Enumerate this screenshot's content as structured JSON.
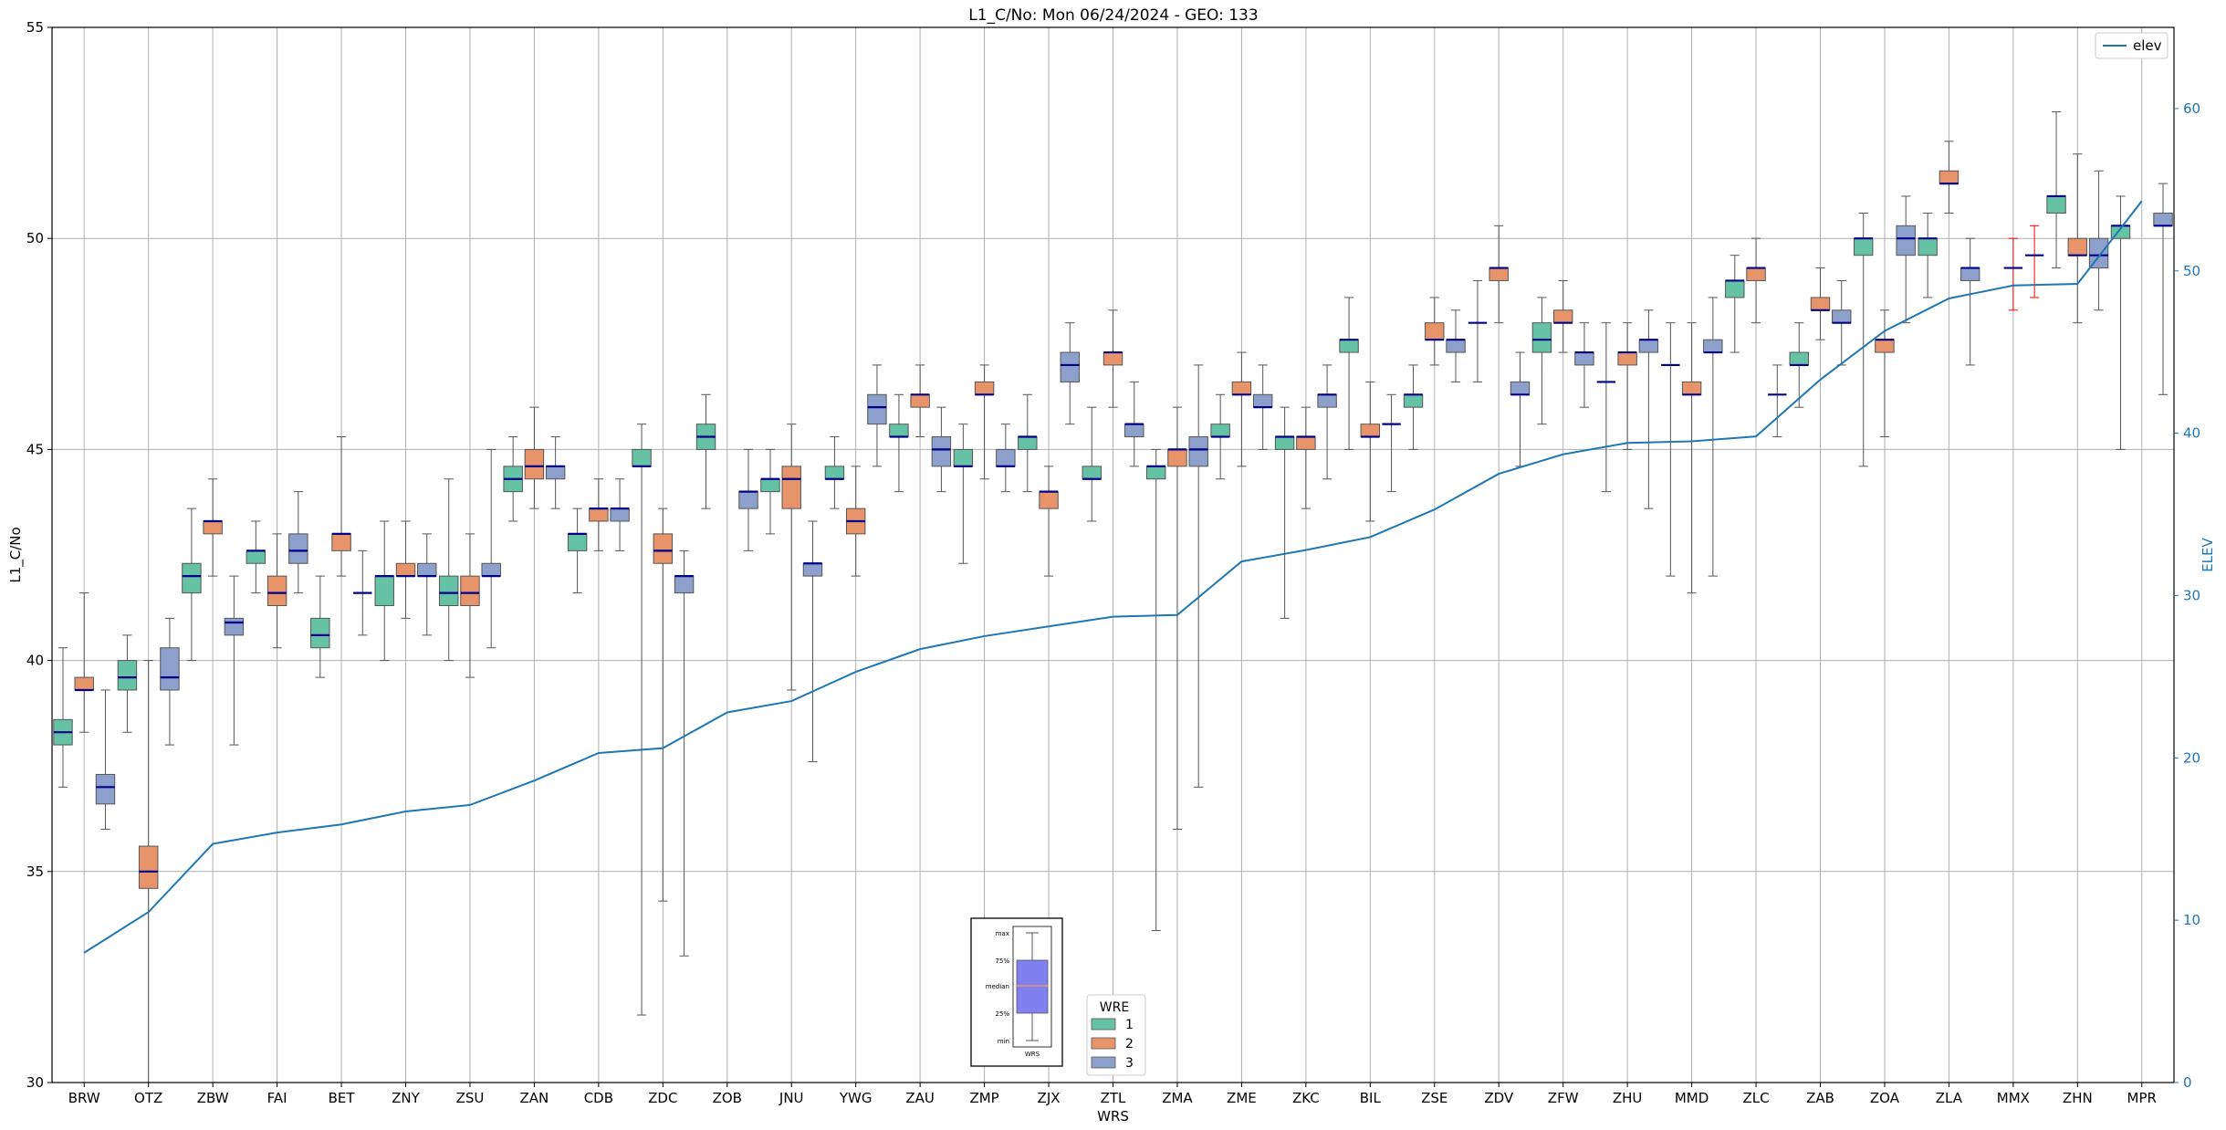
{
  "chart_data": {
    "type": "box",
    "title": "L1_C/No: Mon 06/24/2024 - GEO: 133",
    "xlabel": "WRS",
    "ylabel": "L1_C/No",
    "y2label": "ELEV",
    "ylim": [
      30,
      55
    ],
    "y2lim": [
      0,
      65
    ],
    "yticks": [
      30,
      35,
      40,
      45,
      50,
      55
    ],
    "y2ticks": [
      0,
      10,
      20,
      30,
      40,
      50,
      60
    ],
    "grid": true,
    "categories": [
      "BRW",
      "OTZ",
      "ZBW",
      "FAI",
      "BET",
      "ZNY",
      "ZSU",
      "ZAN",
      "CDB",
      "ZDC",
      "ZOB",
      "JNU",
      "YWG",
      "ZAU",
      "ZMP",
      "ZJX",
      "ZTL",
      "ZMA",
      "ZME",
      "ZKC",
      "BIL",
      "ZSE",
      "ZDV",
      "ZFW",
      "ZHU",
      "MMD",
      "ZLC",
      "ZAB",
      "ZOA",
      "ZLA",
      "MMX",
      "ZHN",
      "MPR"
    ],
    "series_colors": {
      "1": "#66c2a5",
      "2": "#e8946b",
      "3": "#8da0cb"
    },
    "median_color": "#00008b",
    "legend_wre": {
      "title": "WRE",
      "items": [
        "1",
        "2",
        "3"
      ]
    },
    "legend_elev": {
      "label": "elev",
      "color": "#1f77b4",
      "placement": "top-right"
    },
    "key_box": {
      "max": "max",
      "q75": "75%",
      "median": "median",
      "q25": "25%",
      "min": "min",
      "label": "WRS"
    },
    "boxes": [
      {
        "site": "BRW",
        "wre": 1,
        "min": 37,
        "q1": 38,
        "med": 38.3,
        "q3": 38.6,
        "max": 40.3
      },
      {
        "site": "BRW",
        "wre": 2,
        "min": 38.3,
        "q1": 39.3,
        "med": 39.3,
        "q3": 39.6,
        "max": 41.6
      },
      {
        "site": "BRW",
        "wre": 3,
        "min": 36,
        "q1": 36.6,
        "med": 37,
        "q3": 37.3,
        "max": 39.3
      },
      {
        "site": "OTZ",
        "wre": 1,
        "min": 38.3,
        "q1": 39.3,
        "med": 39.6,
        "q3": 40,
        "max": 40.6
      },
      {
        "site": "OTZ",
        "wre": 2,
        "min": 30,
        "q1": 34.6,
        "med": 35,
        "q3": 35.6,
        "max": 40
      },
      {
        "site": "OTZ",
        "wre": 3,
        "min": 38,
        "q1": 39.3,
        "med": 39.6,
        "q3": 40.3,
        "max": 41
      },
      {
        "site": "ZBW",
        "wre": 1,
        "min": 40,
        "q1": 41.6,
        "med": 42,
        "q3": 42.3,
        "max": 43.6
      },
      {
        "site": "ZBW",
        "wre": 2,
        "min": 42,
        "q1": 43,
        "med": 43.3,
        "q3": 43.3,
        "max": 44.3
      },
      {
        "site": "ZBW",
        "wre": 3,
        "min": 38,
        "q1": 40.6,
        "med": 40.9,
        "q3": 41,
        "max": 42
      },
      {
        "site": "FAI",
        "wre": 1,
        "min": 41.6,
        "q1": 42.3,
        "med": 42.6,
        "q3": 42.6,
        "max": 43.3
      },
      {
        "site": "FAI",
        "wre": 2,
        "min": 40.3,
        "q1": 41.3,
        "med": 41.6,
        "q3": 42,
        "max": 43
      },
      {
        "site": "FAI",
        "wre": 3,
        "min": 41.6,
        "q1": 42.3,
        "med": 42.6,
        "q3": 43,
        "max": 44
      },
      {
        "site": "BET",
        "wre": 1,
        "min": 39.6,
        "q1": 40.3,
        "med": 40.6,
        "q3": 41,
        "max": 42
      },
      {
        "site": "BET",
        "wre": 2,
        "min": 42,
        "q1": 42.6,
        "med": 43,
        "q3": 43,
        "max": 45.3
      },
      {
        "site": "BET",
        "wre": 3,
        "min": 40.6,
        "q1": 41.6,
        "med": 41.6,
        "q3": 41.6,
        "max": 42.6
      },
      {
        "site": "ZNY",
        "wre": 1,
        "min": 40,
        "q1": 41.3,
        "med": 42,
        "q3": 42,
        "max": 43.3
      },
      {
        "site": "ZNY",
        "wre": 2,
        "min": 41,
        "q1": 42,
        "med": 42,
        "q3": 42.3,
        "max": 43.3
      },
      {
        "site": "ZNY",
        "wre": 3,
        "min": 40.6,
        "q1": 42,
        "med": 42,
        "q3": 42.3,
        "max": 43
      },
      {
        "site": "ZSU",
        "wre": 1,
        "min": 40,
        "q1": 41.3,
        "med": 41.6,
        "q3": 42,
        "max": 44.3
      },
      {
        "site": "ZSU",
        "wre": 2,
        "min": 39.6,
        "q1": 41.3,
        "med": 41.6,
        "q3": 42,
        "max": 43
      },
      {
        "site": "ZSU",
        "wre": 3,
        "min": 40.3,
        "q1": 42,
        "med": 42,
        "q3": 42.3,
        "max": 45
      },
      {
        "site": "ZAN",
        "wre": 1,
        "min": 43.3,
        "q1": 44,
        "med": 44.3,
        "q3": 44.6,
        "max": 45.3
      },
      {
        "site": "ZAN",
        "wre": 2,
        "min": 43.6,
        "q1": 44.3,
        "med": 44.6,
        "q3": 45,
        "max": 46
      },
      {
        "site": "ZAN",
        "wre": 3,
        "min": 43.6,
        "q1": 44.3,
        "med": 44.6,
        "q3": 44.6,
        "max": 45.3
      },
      {
        "site": "CDB",
        "wre": 1,
        "min": 41.6,
        "q1": 42.6,
        "med": 43,
        "q3": 43,
        "max": 43.6
      },
      {
        "site": "CDB",
        "wre": 2,
        "min": 42.6,
        "q1": 43.3,
        "med": 43.6,
        "q3": 43.6,
        "max": 44.3
      },
      {
        "site": "CDB",
        "wre": 3,
        "min": 42.6,
        "q1": 43.3,
        "med": 43.6,
        "q3": 43.6,
        "max": 44.3
      },
      {
        "site": "ZDC",
        "wre": 1,
        "min": 31.6,
        "q1": 44.6,
        "med": 44.6,
        "q3": 45,
        "max": 45.6
      },
      {
        "site": "ZDC",
        "wre": 2,
        "min": 34.3,
        "q1": 42.3,
        "med": 42.6,
        "q3": 43,
        "max": 43.6
      },
      {
        "site": "ZDC",
        "wre": 3,
        "min": 33,
        "q1": 41.6,
        "med": 42,
        "q3": 42,
        "max": 42.6
      },
      {
        "site": "ZOB",
        "wre": 1,
        "min": 43.6,
        "q1": 45,
        "med": 45.3,
        "q3": 45.6,
        "max": 46.3
      },
      {
        "site": "ZOB",
        "wre": 3,
        "min": 42.6,
        "q1": 43.6,
        "med": 44,
        "q3": 44,
        "max": 45
      },
      {
        "site": "JNU",
        "wre": 1,
        "min": 43,
        "q1": 44,
        "med": 44.3,
        "q3": 44.3,
        "max": 45
      },
      {
        "site": "JNU",
        "wre": 2,
        "min": 39.3,
        "q1": 43.6,
        "med": 44.3,
        "q3": 44.6,
        "max": 45.6
      },
      {
        "site": "JNU",
        "wre": 3,
        "min": 37.6,
        "q1": 42,
        "med": 42.3,
        "q3": 42.3,
        "max": 43.3
      },
      {
        "site": "YWG",
        "wre": 1,
        "min": 43.6,
        "q1": 44.3,
        "med": 44.3,
        "q3": 44.6,
        "max": 45.3
      },
      {
        "site": "YWG",
        "wre": 2,
        "min": 42,
        "q1": 43,
        "med": 43.3,
        "q3": 43.6,
        "max": 44.6
      },
      {
        "site": "YWG",
        "wre": 3,
        "min": 44.6,
        "q1": 45.6,
        "med": 46,
        "q3": 46.3,
        "max": 47
      },
      {
        "site": "ZAU",
        "wre": 1,
        "min": 44,
        "q1": 45.3,
        "med": 45.3,
        "q3": 45.6,
        "max": 46.3
      },
      {
        "site": "ZAU",
        "wre": 2,
        "min": 45.3,
        "q1": 46,
        "med": 46.3,
        "q3": 46.3,
        "max": 47
      },
      {
        "site": "ZAU",
        "wre": 3,
        "min": 44,
        "q1": 44.6,
        "med": 45,
        "q3": 45.3,
        "max": 46
      },
      {
        "site": "ZMP",
        "wre": 1,
        "min": 42.3,
        "q1": 44.6,
        "med": 44.6,
        "q3": 45,
        "max": 45.6
      },
      {
        "site": "ZMP",
        "wre": 2,
        "min": 44.3,
        "q1": 46.3,
        "med": 46.3,
        "q3": 46.6,
        "max": 47
      },
      {
        "site": "ZMP",
        "wre": 3,
        "min": 44,
        "q1": 44.6,
        "med": 44.6,
        "q3": 45,
        "max": 45.6
      },
      {
        "site": "ZJX",
        "wre": 1,
        "min": 44,
        "q1": 45,
        "med": 45.3,
        "q3": 45.3,
        "max": 46.3
      },
      {
        "site": "ZJX",
        "wre": 2,
        "min": 42,
        "q1": 43.6,
        "med": 44,
        "q3": 44,
        "max": 44.6
      },
      {
        "site": "ZJX",
        "wre": 3,
        "min": 45.6,
        "q1": 46.6,
        "med": 47,
        "q3": 47.3,
        "max": 48
      },
      {
        "site": "ZTL",
        "wre": 1,
        "min": 43.3,
        "q1": 44.3,
        "med": 44.3,
        "q3": 44.6,
        "max": 46
      },
      {
        "site": "ZTL",
        "wre": 2,
        "min": 46,
        "q1": 47,
        "med": 47.3,
        "q3": 47.3,
        "max": 48.3
      },
      {
        "site": "ZTL",
        "wre": 3,
        "min": 44.6,
        "q1": 45.3,
        "med": 45.6,
        "q3": 45.6,
        "max": 46.6
      },
      {
        "site": "ZMA",
        "wre": 1,
        "min": 33.6,
        "q1": 44.3,
        "med": 44.6,
        "q3": 44.6,
        "max": 45
      },
      {
        "site": "ZMA",
        "wre": 2,
        "min": 36,
        "q1": 44.6,
        "med": 45,
        "q3": 45,
        "max": 46
      },
      {
        "site": "ZMA",
        "wre": 3,
        "min": 37,
        "q1": 44.6,
        "med": 45,
        "q3": 45.3,
        "max": 47
      },
      {
        "site": "ZME",
        "wre": 1,
        "min": 44.3,
        "q1": 45.3,
        "med": 45.3,
        "q3": 45.6,
        "max": 46.3
      },
      {
        "site": "ZME",
        "wre": 2,
        "min": 44.6,
        "q1": 46.3,
        "med": 46.3,
        "q3": 46.6,
        "max": 47.3
      },
      {
        "site": "ZME",
        "wre": 3,
        "min": 45,
        "q1": 46,
        "med": 46,
        "q3": 46.3,
        "max": 47
      },
      {
        "site": "ZKC",
        "wre": 1,
        "min": 41,
        "q1": 45,
        "med": 45.3,
        "q3": 45.3,
        "max": 46
      },
      {
        "site": "ZKC",
        "wre": 2,
        "min": 43.6,
        "q1": 45,
        "med": 45.3,
        "q3": 45.3,
        "max": 46
      },
      {
        "site": "ZKC",
        "wre": 3,
        "min": 44.3,
        "q1": 46,
        "med": 46.3,
        "q3": 46.3,
        "max": 47
      },
      {
        "site": "BIL",
        "wre": 1,
        "min": 45,
        "q1": 47.3,
        "med": 47.6,
        "q3": 47.6,
        "max": 48.6
      },
      {
        "site": "BIL",
        "wre": 2,
        "min": 43.3,
        "q1": 45.3,
        "med": 45.3,
        "q3": 45.6,
        "max": 46.6
      },
      {
        "site": "BIL",
        "wre": 3,
        "min": 44,
        "q1": 45.6,
        "med": 45.6,
        "q3": 45.6,
        "max": 46.3
      },
      {
        "site": "ZSE",
        "wre": 1,
        "min": 45,
        "q1": 46,
        "med": 46.3,
        "q3": 46.3,
        "max": 47
      },
      {
        "site": "ZSE",
        "wre": 2,
        "min": 47,
        "q1": 47.6,
        "med": 47.6,
        "q3": 48,
        "max": 48.6
      },
      {
        "site": "ZSE",
        "wre": 3,
        "min": 46.6,
        "q1": 47.3,
        "med": 47.6,
        "q3": 47.6,
        "max": 48.3
      },
      {
        "site": "ZDV",
        "wre": 1,
        "min": 46.6,
        "q1": 48,
        "med": 48,
        "q3": 48,
        "max": 49
      },
      {
        "site": "ZDV",
        "wre": 2,
        "min": 48,
        "q1": 49,
        "med": 49.3,
        "q3": 49.3,
        "max": 50.3
      },
      {
        "site": "ZDV",
        "wre": 3,
        "min": 44.6,
        "q1": 46.3,
        "med": 46.3,
        "q3": 46.6,
        "max": 47.3
      },
      {
        "site": "ZFW",
        "wre": 1,
        "min": 45.6,
        "q1": 47.3,
        "med": 47.6,
        "q3": 48,
        "max": 48.6
      },
      {
        "site": "ZFW",
        "wre": 2,
        "min": 47.3,
        "q1": 48,
        "med": 48,
        "q3": 48.3,
        "max": 49
      },
      {
        "site": "ZFW",
        "wre": 3,
        "min": 46,
        "q1": 47,
        "med": 47.3,
        "q3": 47.3,
        "max": 48
      },
      {
        "site": "ZHU",
        "wre": 1,
        "min": 44,
        "q1": 46.6,
        "med": 46.6,
        "q3": 46.6,
        "max": 48
      },
      {
        "site": "ZHU",
        "wre": 2,
        "min": 45,
        "q1": 47,
        "med": 47.3,
        "q3": 47.3,
        "max": 48
      },
      {
        "site": "ZHU",
        "wre": 3,
        "min": 43.6,
        "q1": 47.3,
        "med": 47.6,
        "q3": 47.6,
        "max": 48.3
      },
      {
        "site": "MMD",
        "wre": 1,
        "min": 42,
        "q1": 47,
        "med": 47,
        "q3": 47,
        "max": 48
      },
      {
        "site": "MMD",
        "wre": 2,
        "min": 41.6,
        "q1": 46.3,
        "med": 46.3,
        "q3": 46.6,
        "max": 48
      },
      {
        "site": "MMD",
        "wre": 3,
        "min": 42,
        "q1": 47.3,
        "med": 47.3,
        "q3": 47.6,
        "max": 48.6
      },
      {
        "site": "ZLC",
        "wre": 1,
        "min": 47.3,
        "q1": 48.6,
        "med": 49,
        "q3": 49,
        "max": 49.6
      },
      {
        "site": "ZLC",
        "wre": 2,
        "min": 48,
        "q1": 49,
        "med": 49.3,
        "q3": 49.3,
        "max": 50
      },
      {
        "site": "ZLC",
        "wre": 3,
        "min": 45.3,
        "q1": 46.3,
        "med": 46.3,
        "q3": 46.3,
        "max": 47
      },
      {
        "site": "ZAB",
        "wre": 1,
        "min": 46,
        "q1": 47,
        "med": 47,
        "q3": 47.3,
        "max": 48
      },
      {
        "site": "ZAB",
        "wre": 2,
        "min": 47.6,
        "q1": 48.3,
        "med": 48.3,
        "q3": 48.6,
        "max": 49.3
      },
      {
        "site": "ZAB",
        "wre": 3,
        "min": 47,
        "q1": 48,
        "med": 48,
        "q3": 48.3,
        "max": 49
      },
      {
        "site": "ZOA",
        "wre": 1,
        "min": 44.6,
        "q1": 49.6,
        "med": 50,
        "q3": 50,
        "max": 50.6
      },
      {
        "site": "ZOA",
        "wre": 2,
        "min": 45.3,
        "q1": 47.3,
        "med": 47.6,
        "q3": 47.6,
        "max": 48.3
      },
      {
        "site": "ZOA",
        "wre": 3,
        "min": 48,
        "q1": 49.6,
        "med": 50,
        "q3": 50.3,
        "max": 51
      },
      {
        "site": "ZLA",
        "wre": 1,
        "min": 48.6,
        "q1": 49.6,
        "med": 50,
        "q3": 50,
        "max": 50.6
      },
      {
        "site": "ZLA",
        "wre": 2,
        "min": 50.6,
        "q1": 51.3,
        "med": 51.3,
        "q3": 51.6,
        "max": 52.3
      },
      {
        "site": "ZLA",
        "wre": 3,
        "min": 47,
        "q1": 49,
        "med": 49.3,
        "q3": 49.3,
        "max": 50
      },
      {
        "site": "MMX",
        "wre": 2,
        "min": 48.3,
        "q1": 49.3,
        "med": 49.3,
        "q3": 49.3,
        "max": 50,
        "whisker_color": "#ff0000"
      },
      {
        "site": "MMX",
        "wre": 3,
        "min": 48.6,
        "q1": 49.6,
        "med": 49.6,
        "q3": 49.6,
        "max": 50.3,
        "whisker_color": "#ff0000"
      },
      {
        "site": "ZHN",
        "wre": 1,
        "min": 49.3,
        "q1": 50.6,
        "med": 51,
        "q3": 51,
        "max": 53
      },
      {
        "site": "ZHN",
        "wre": 2,
        "min": 48,
        "q1": 49.6,
        "med": 49.6,
        "q3": 50,
        "max": 52
      },
      {
        "site": "ZHN",
        "wre": 3,
        "min": 48.3,
        "q1": 49.3,
        "med": 49.6,
        "q3": 50,
        "max": 51.6
      },
      {
        "site": "MPR",
        "wre": 1,
        "min": 45,
        "q1": 50,
        "med": 50.3,
        "q3": 50.3,
        "max": 51
      },
      {
        "site": "MPR",
        "wre": 3,
        "min": 46.3,
        "q1": 50.3,
        "med": 50.3,
        "q3": 50.6,
        "max": 51.3
      }
    ],
    "elev": {
      "sites": [
        "BRW",
        "OTZ",
        "ZBW",
        "FAI",
        "BET",
        "ZNY",
        "ZSU",
        "ZAN",
        "CDB",
        "ZDC",
        "ZOB",
        "JNU",
        "YWG",
        "ZAU",
        "ZMP",
        "ZJX",
        "ZTL",
        "ZMA",
        "ZME",
        "ZKC",
        "BIL",
        "ZSE",
        "ZDV",
        "ZFW",
        "ZHU",
        "MMD",
        "ZLC",
        "ZAB",
        "ZOA",
        "ZLA",
        "MMX",
        "ZHN",
        "MPR"
      ],
      "values": [
        8,
        10.5,
        14.7,
        15.4,
        15.9,
        16.7,
        17.1,
        18.6,
        20.3,
        20.6,
        22.8,
        23.5,
        25.3,
        26.7,
        27.5,
        28.1,
        28.7,
        28.8,
        32.1,
        32.8,
        33.6,
        35.3,
        37.5,
        38.7,
        39.4,
        39.5,
        39.8,
        43.3,
        46.3,
        48.3,
        49.1,
        49.2,
        54.3
      ]
    }
  }
}
